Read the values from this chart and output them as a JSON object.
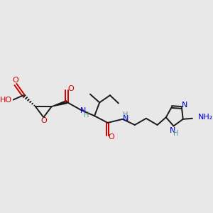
{
  "bg_color": "#e8e8e8",
  "bond_color": "#1a1a1a",
  "oxygen_color": "#cc0000",
  "nitrogen_color": "#0000cc",
  "hetero_H_color": "#4a9090",
  "figsize": [
    3.0,
    3.0
  ],
  "dpi": 100,
  "xlim": [
    0.3,
    10.3
  ],
  "ylim": [
    3.2,
    7.0
  ]
}
